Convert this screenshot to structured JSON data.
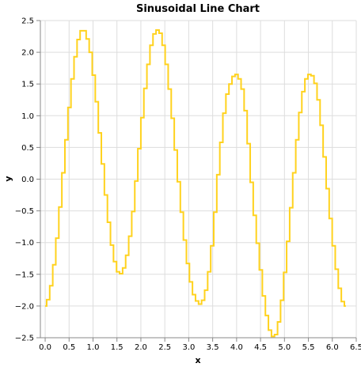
{
  "chart_data": {
    "type": "line",
    "interpolation": "step",
    "title": "Sinusoidal Line Chart",
    "xlabel": "x",
    "ylabel": "y",
    "xlim": [
      -0.1,
      6.5
    ],
    "ylim": [
      -2.5,
      2.5
    ],
    "grid": true,
    "x_ticks": [
      "0.0",
      "0.5",
      "1.0",
      "1.5",
      "2.0",
      "2.5",
      "3.0",
      "3.5",
      "4.0",
      "4.5",
      "5.0",
      "5.5",
      "6.0",
      "6.5"
    ],
    "y_ticks": [
      "2.5",
      "2.0",
      "1.5",
      "1.0",
      "0.5",
      "0.0",
      "−0.5",
      "−1.0",
      "−1.5",
      "−2.0",
      "−2.5"
    ],
    "series": [
      {
        "color": "#ffd21e",
        "x": [
          0.0,
          0.0635,
          0.127,
          0.19,
          0.254,
          0.317,
          0.381,
          0.444,
          0.508,
          0.571,
          0.635,
          0.698,
          0.762,
          0.825,
          0.888,
          0.952,
          1.015,
          1.079,
          1.142,
          1.206,
          1.269,
          1.333,
          1.396,
          1.46,
          1.523,
          1.587,
          1.65,
          1.714,
          1.777,
          1.841,
          1.904,
          1.968,
          2.031,
          2.094,
          2.158,
          2.221,
          2.285,
          2.348,
          2.412,
          2.475,
          2.539,
          2.602,
          2.666,
          2.729,
          2.793,
          2.856,
          2.92,
          2.983,
          3.046,
          3.11,
          3.173,
          3.237,
          3.3,
          3.364,
          3.427,
          3.491,
          3.554,
          3.618,
          3.681,
          3.745,
          3.808,
          3.872,
          3.935,
          3.999,
          4.062,
          4.125,
          4.189,
          4.252,
          4.316,
          4.379,
          4.443,
          4.506,
          4.57,
          4.633,
          4.697,
          4.76,
          4.824,
          4.887,
          4.95,
          5.014,
          5.077,
          5.141,
          5.204,
          5.268,
          5.331,
          5.395,
          5.458,
          5.522,
          5.585,
          5.649,
          5.712,
          5.776,
          5.839,
          5.903,
          5.966,
          6.029,
          6.093,
          6.156,
          6.22,
          6.283
        ],
        "y": [
          -2.0,
          -1.9,
          -1.68,
          -1.35,
          -0.93,
          -0.44,
          0.1,
          0.62,
          1.13,
          1.58,
          1.93,
          2.2,
          2.34,
          2.34,
          2.21,
          2.0,
          1.64,
          1.22,
          0.73,
          0.24,
          -0.25,
          -0.68,
          -1.04,
          -1.3,
          -1.46,
          -1.49,
          -1.4,
          -1.2,
          -0.9,
          -0.51,
          -0.03,
          0.48,
          0.97,
          1.43,
          1.81,
          2.11,
          2.29,
          2.35,
          2.3,
          2.11,
          1.81,
          1.42,
          0.96,
          0.46,
          -0.04,
          -0.52,
          -0.96,
          -1.33,
          -1.62,
          -1.82,
          -1.92,
          -1.97,
          -1.91,
          -1.75,
          -1.46,
          -1.05,
          -0.52,
          0.07,
          0.58,
          1.04,
          1.34,
          1.5,
          1.62,
          1.65,
          1.58,
          1.42,
          1.08,
          0.56,
          -0.05,
          -0.57,
          -1.01,
          -1.43,
          -1.84,
          -2.15,
          -2.38,
          -2.48,
          -2.45,
          -2.25,
          -1.91,
          -1.47,
          -0.98,
          -0.45,
          0.1,
          0.62,
          1.05,
          1.38,
          1.58,
          1.65,
          1.63,
          1.51,
          1.25,
          0.85,
          0.35,
          -0.15,
          -0.62,
          -1.05,
          -1.42,
          -1.72,
          -1.93,
          -2.0
        ]
      }
    ]
  }
}
